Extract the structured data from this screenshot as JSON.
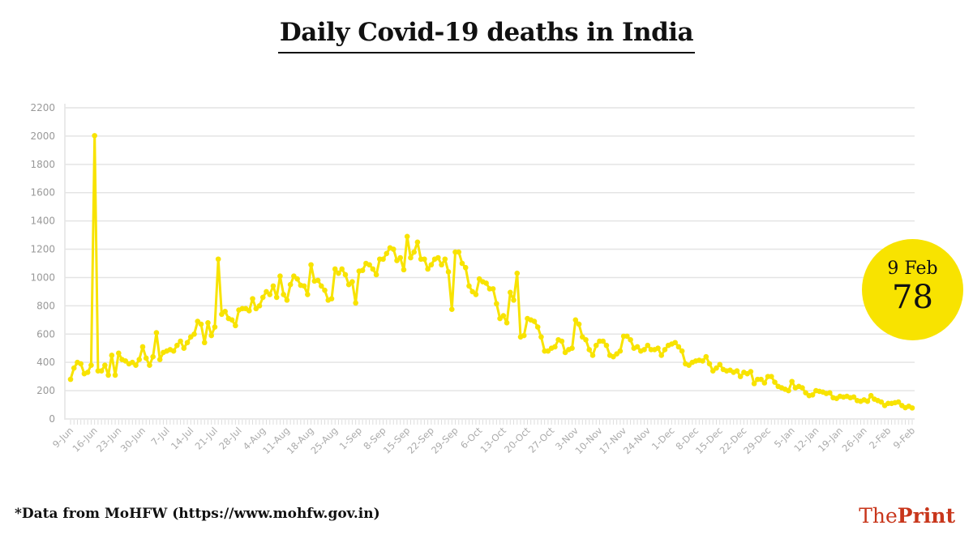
{
  "chart_data": {
    "type": "line",
    "title": "Daily Covid-19 deaths in India",
    "xlabel": "",
    "ylabel": "",
    "ylim": [
      0,
      2200
    ],
    "y_ticks": [
      0,
      200,
      400,
      600,
      800,
      1000,
      1200,
      1400,
      1600,
      1800,
      2000,
      2200
    ],
    "grid": true,
    "x_tick_labels": [
      "9-Jun",
      "16-Jun",
      "23-Jun",
      "30-Jun",
      "7-Jul",
      "14-Jul",
      "21-Jul",
      "28-Jul",
      "4-Aug",
      "11-Aug",
      "18-Aug",
      "25-Aug",
      "1-Sep",
      "8-Sep",
      "15-Sep",
      "22-Sep",
      "29-Sep",
      "6-Oct",
      "13-Oct",
      "20-Oct",
      "27-Oct",
      "3-Nov",
      "10-Nov",
      "17-Nov",
      "24-Nov",
      "1-Dec",
      "8-Dec",
      "15-Dec",
      "22-Dec",
      "29-Dec",
      "5-Jan",
      "12-Jan",
      "19-Jan",
      "26-Jan",
      "2-Feb",
      "9-Feb"
    ],
    "series": [
      {
        "color": "#f8e300",
        "values": [
          280,
          360,
          400,
          390,
          320,
          330,
          380,
          2003,
          340,
          340,
          380,
          310,
          450,
          310,
          465,
          420,
          410,
          390,
          400,
          380,
          420,
          510,
          430,
          380,
          440,
          610,
          420,
          470,
          480,
          490,
          480,
          520,
          550,
          500,
          540,
          580,
          600,
          690,
          670,
          540,
          680,
          590,
          650,
          1130,
          740,
          760,
          710,
          700,
          660,
          770,
          780,
          780,
          765,
          850,
          780,
          800,
          860,
          900,
          880,
          940,
          860,
          1010,
          880,
          840,
          950,
          1010,
          990,
          945,
          940,
          880,
          1090,
          975,
          980,
          940,
          910,
          840,
          850,
          1060,
          1030,
          1060,
          1020,
          950,
          970,
          820,
          1045,
          1050,
          1100,
          1090,
          1060,
          1020,
          1130,
          1130,
          1170,
          1210,
          1200,
          1120,
          1140,
          1055,
          1290,
          1140,
          1180,
          1250,
          1130,
          1130,
          1060,
          1090,
          1130,
          1140,
          1090,
          1130,
          1040,
          775,
          1180,
          1180,
          1100,
          1070,
          940,
          900,
          880,
          990,
          970,
          960,
          920,
          920,
          815,
          710,
          730,
          680,
          895,
          840,
          1030,
          580,
          590,
          710,
          700,
          690,
          650,
          580,
          480,
          480,
          500,
          510,
          560,
          550,
          470,
          490,
          500,
          700,
          670,
          580,
          560,
          490,
          450,
          520,
          550,
          550,
          520,
          450,
          440,
          460,
          480,
          585,
          585,
          560,
          500,
          510,
          480,
          490,
          520,
          490,
          490,
          500,
          450,
          490,
          520,
          530,
          540,
          510,
          480,
          390,
          380,
          400,
          410,
          415,
          410,
          440,
          390,
          340,
          360,
          385,
          350,
          340,
          345,
          330,
          340,
          300,
          330,
          320,
          335,
          250,
          280,
          280,
          255,
          300,
          300,
          260,
          230,
          220,
          210,
          200,
          265,
          220,
          230,
          220,
          185,
          165,
          170,
          200,
          195,
          190,
          180,
          185,
          150,
          145,
          160,
          155,
          160,
          150,
          155,
          130,
          125,
          135,
          125,
          165,
          140,
          130,
          120,
          95,
          110,
          110,
          115,
          120,
          95,
          80,
          90,
          78
        ]
      }
    ],
    "annotation": {
      "date": "9 Feb",
      "value": "78",
      "color": "#f8e300"
    }
  },
  "footnote": "*Data from MoHFW (https://www.mohfw.gov.in)",
  "logo": {
    "part1": "The",
    "part2": "Print",
    "color": "#c8361b"
  }
}
